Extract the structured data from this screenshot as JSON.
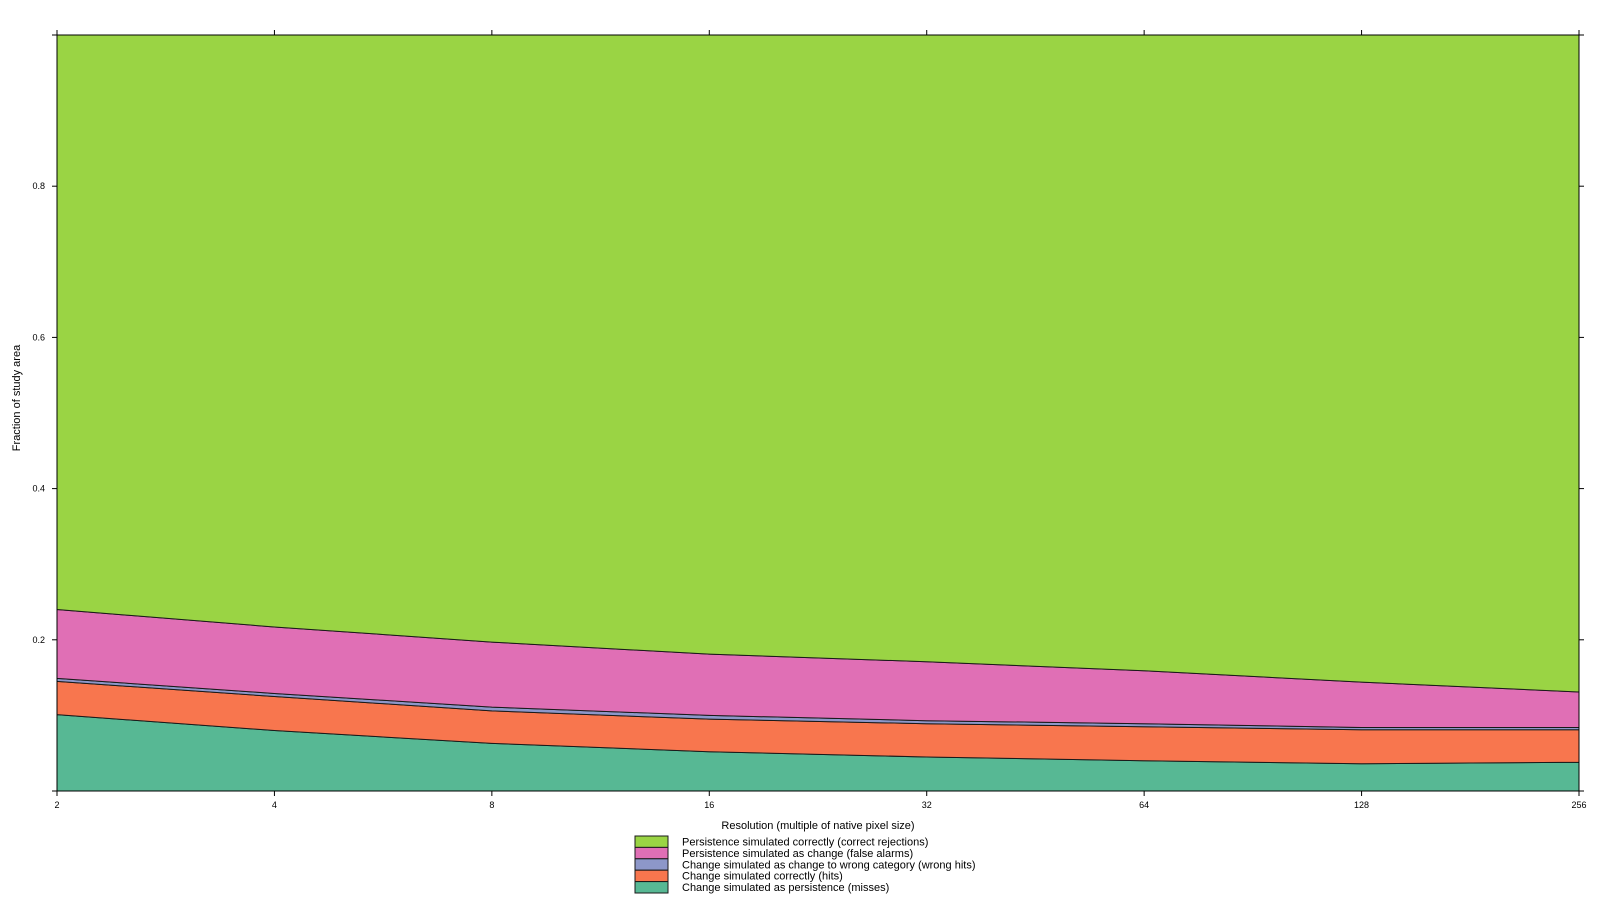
{
  "chart_data": {
    "type": "area",
    "stacked": true,
    "title": "",
    "xlabel": "Resolution (multiple of native pixel size)",
    "ylabel": "Fraction of study area",
    "x_scale": "log2",
    "x": [
      2,
      4,
      8,
      16,
      32,
      64,
      128,
      256
    ],
    "x_tick_labels": [
      "2",
      "4",
      "8",
      "16",
      "32",
      "64",
      "128",
      "256"
    ],
    "ylim": [
      0,
      1
    ],
    "y_ticks": [
      0.2,
      0.4,
      0.6,
      0.8
    ],
    "y_tick_labels": [
      "0.2",
      "0.4",
      "0.6",
      "0.8"
    ],
    "grid": false,
    "legend_position": "bottom",
    "series": [
      {
        "name": "Change simulated as persistence (misses)",
        "color": "#57b894",
        "values": [
          0.101,
          0.08,
          0.063,
          0.052,
          0.045,
          0.04,
          0.036,
          0.038
        ]
      },
      {
        "name": "Change simulated correctly (hits)",
        "color": "#f8764e",
        "values": [
          0.044,
          0.045,
          0.043,
          0.043,
          0.044,
          0.045,
          0.045,
          0.043
        ]
      },
      {
        "name": "Change simulated as change to wrong category (wrong hits)",
        "color": "#8d97c9",
        "values": [
          0.004,
          0.004,
          0.005,
          0.005,
          0.004,
          0.004,
          0.003,
          0.003
        ]
      },
      {
        "name": "Persistence simulated as change (false alarms)",
        "color": "#e06fb5",
        "values": [
          0.091,
          0.088,
          0.086,
          0.081,
          0.078,
          0.07,
          0.06,
          0.047
        ]
      },
      {
        "name": "Persistence simulated correctly (correct rejections)",
        "color": "#9ad444",
        "values": [
          0.76,
          0.783,
          0.803,
          0.819,
          0.829,
          0.841,
          0.856,
          0.869
        ]
      }
    ],
    "legend_order": [
      "Persistence simulated correctly (correct rejections)",
      "Persistence simulated as change (false alarms)",
      "Change simulated as change to wrong category (wrong hits)",
      "Change simulated correctly (hits)",
      "Change simulated as persistence (misses)"
    ]
  }
}
